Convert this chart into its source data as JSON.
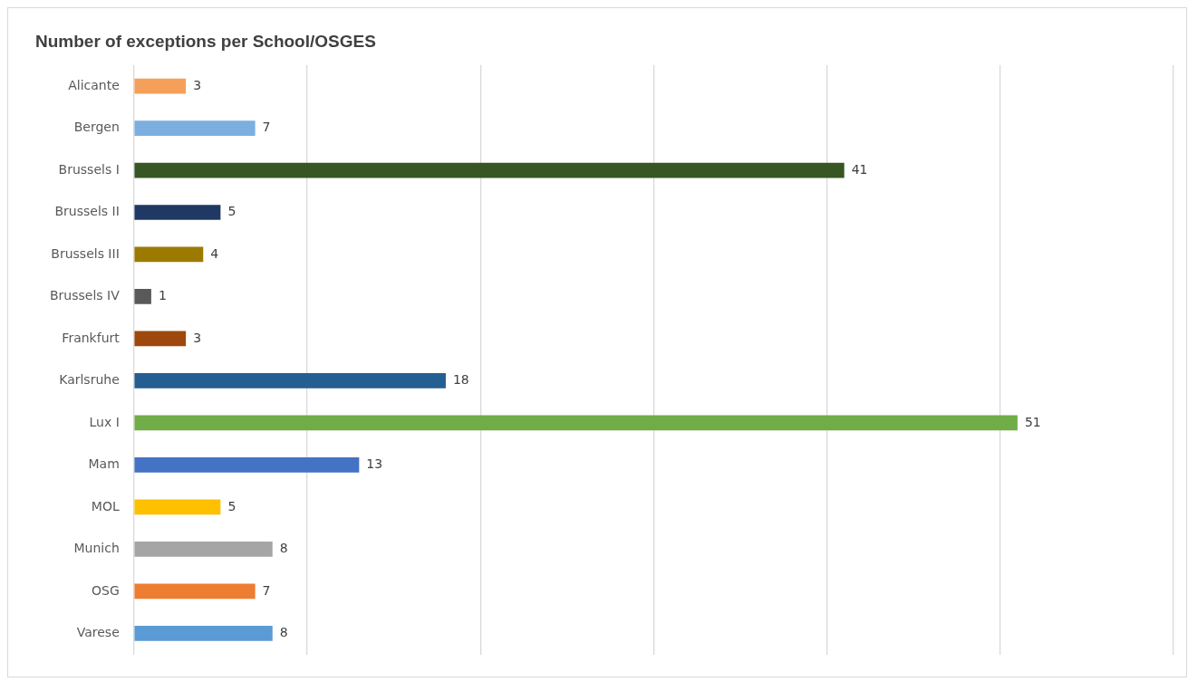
{
  "chart_data": {
    "type": "bar",
    "orientation": "horizontal",
    "title": "Number of exceptions per School/OSGES",
    "categories": [
      "Alicante",
      "Bergen",
      "Brussels I",
      "Brussels II",
      "Brussels III",
      "Brussels IV",
      "Frankfurt",
      "Karlsruhe",
      "Lux I",
      "Mam",
      "MOL",
      "Munich",
      "OSG",
      "Varese"
    ],
    "values": [
      3,
      7,
      41,
      5,
      4,
      1,
      3,
      18,
      51,
      13,
      5,
      8,
      7,
      8
    ],
    "colors": [
      "#f4a05a",
      "#7cafe0",
      "#375623",
      "#203864",
      "#9c7a00",
      "#595959",
      "#9e480e",
      "#255e91",
      "#70ad47",
      "#4472c4",
      "#ffc000",
      "#a5a5a5",
      "#ed7d31",
      "#5b9bd5"
    ],
    "xlim": [
      0,
      60
    ],
    "xticks": [
      {
        "value": 0,
        "label": null
      },
      {
        "value": 10,
        "label": null
      },
      {
        "value": 20,
        "label": null
      },
      {
        "value": 30,
        "label": null
      },
      {
        "value": 40,
        "label": null
      },
      {
        "value": 50,
        "label": null
      },
      {
        "value": 60,
        "label": null
      }
    ],
    "tick_labels": "y",
    "grid": "x",
    "legend": false,
    "data_labels": true
  }
}
